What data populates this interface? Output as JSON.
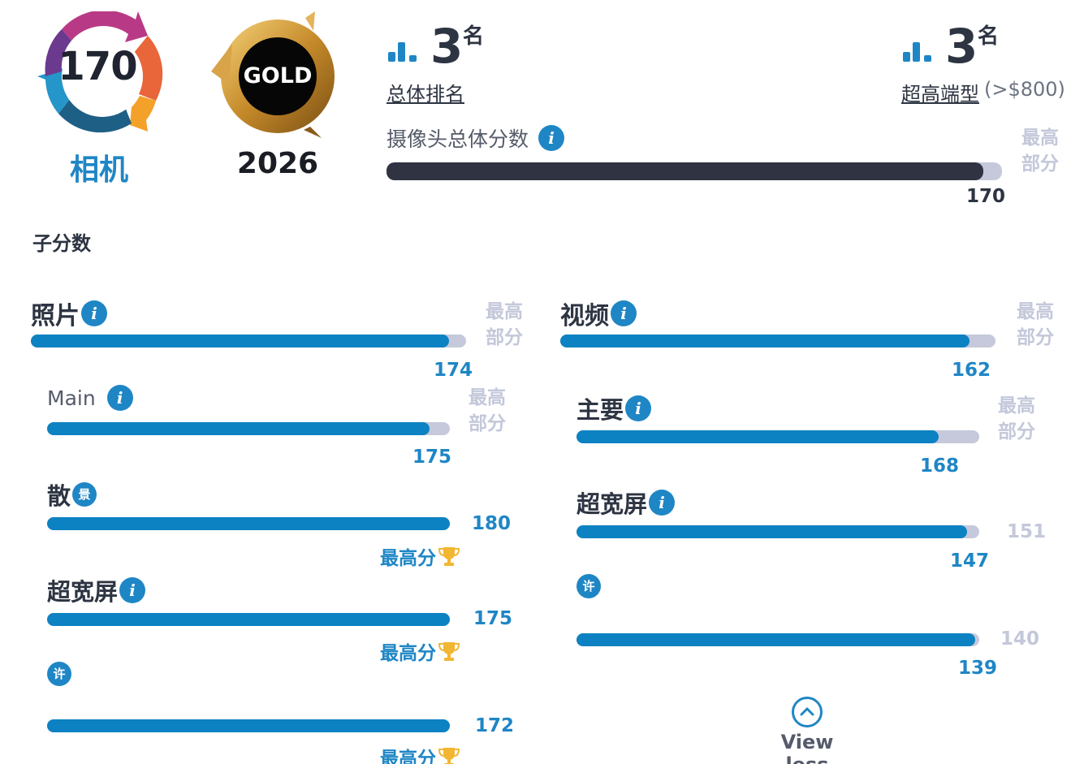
{
  "badges": {
    "camera_score": "170",
    "camera_label": "相机",
    "gold_label": "GOLD",
    "gold_year": "2026"
  },
  "ranking": {
    "overall": {
      "number": "3",
      "suffix": "名",
      "label": "总体排名"
    },
    "segment": {
      "number": "3",
      "suffix": "名",
      "label": "超高端型",
      "extra": "(>$800)"
    }
  },
  "overall_score": {
    "label": "摄像头总体分数",
    "max_label_line1": "最高",
    "max_label_line2": "部分",
    "value": "170",
    "fill_fraction": 0.97
  },
  "subscores_title": "子分数",
  "left": {
    "photo": {
      "label": "照片",
      "score": "174",
      "fill_fraction": 0.96,
      "max_line1": "最高",
      "max_line2": "部分"
    },
    "main": {
      "label": "Main",
      "score": "175",
      "fill_fraction": 0.95,
      "max_line1": "最高",
      "max_line2": "部分"
    },
    "bokeh": {
      "label": "散",
      "score": "180",
      "fill_fraction": 1.0,
      "best": "最高分"
    },
    "ultrawide": {
      "label": "超宽屏",
      "score": "175",
      "fill_fraction": 1.0,
      "best": "最高分"
    },
    "tele": {
      "score": "172",
      "fill_fraction": 1.0,
      "best": "最高分"
    }
  },
  "right": {
    "video": {
      "label": "视频",
      "score": "162",
      "fill_fraction": 0.94,
      "max_line1": "最高",
      "max_line2": "部分"
    },
    "main": {
      "label": "主要",
      "score": "168",
      "fill_fraction": 0.9,
      "max_line1": "最高",
      "max_line2": "部分"
    },
    "ultrawide": {
      "label": "超宽屏",
      "score": "147",
      "max_score": "151",
      "fill_fraction": 0.97
    },
    "tele": {
      "score": "139",
      "max_score": "140",
      "fill_fraction": 0.99
    }
  },
  "view_less": "View less",
  "colors": {
    "accent": "#1f86c5",
    "bar_blue": "#0d82c2",
    "bar_dark": "#2f3342",
    "track": "#c5c9db",
    "trophy": "#f2b632"
  },
  "icons": [
    "info-icon",
    "ranking-bars-icon",
    "trophy-icon",
    "chevron-up-icon",
    "telephoto-icon",
    "bokeh-icon"
  ]
}
